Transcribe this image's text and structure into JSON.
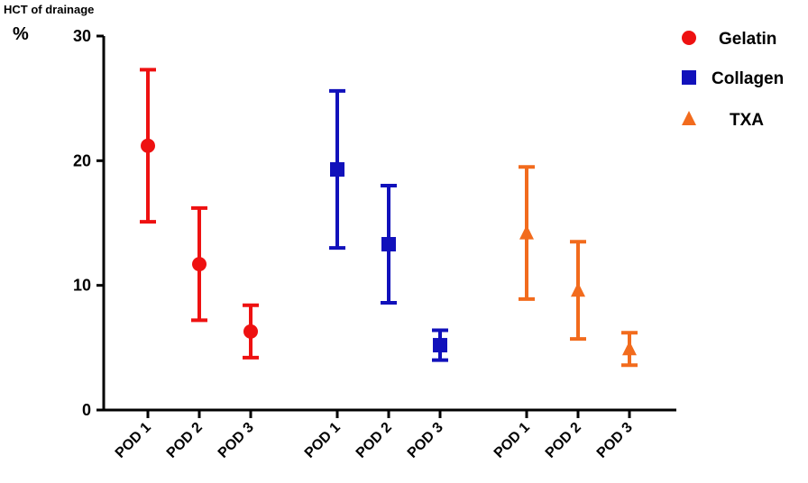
{
  "chart_data": {
    "type": "scatter",
    "title": "",
    "ylabel_top": "HCT of drainage",
    "yunit": "%",
    "ylim": [
      0,
      30
    ],
    "yticks": [
      0,
      10,
      20,
      30
    ],
    "grid": false,
    "legend_position": "top-right",
    "categories": [
      "POD 1",
      "POD 2",
      "POD 3",
      "POD 1",
      "POD 2",
      "POD 3",
      "POD 1",
      "POD 2",
      "POD 3"
    ],
    "series": [
      {
        "name": "Gelatin",
        "marker": "circle",
        "color": "#ee1111",
        "category_indices": [
          0,
          1,
          2
        ],
        "values": [
          21.2,
          11.7,
          6.3
        ],
        "lower": [
          15.1,
          7.2,
          4.2
        ],
        "upper": [
          27.3,
          16.2,
          8.4
        ]
      },
      {
        "name": "Collagen",
        "marker": "square",
        "color": "#1111bb",
        "category_indices": [
          3,
          4,
          5
        ],
        "values": [
          19.3,
          13.3,
          5.2
        ],
        "lower": [
          13.0,
          8.6,
          4.0
        ],
        "upper": [
          25.6,
          18.0,
          6.4
        ]
      },
      {
        "name": "TXA",
        "marker": "triangle",
        "color": "#f26b1d",
        "category_indices": [
          6,
          7,
          8
        ],
        "values": [
          14.2,
          9.6,
          4.9
        ],
        "lower": [
          8.9,
          5.7,
          3.6
        ],
        "upper": [
          19.5,
          13.5,
          6.2
        ]
      }
    ]
  }
}
